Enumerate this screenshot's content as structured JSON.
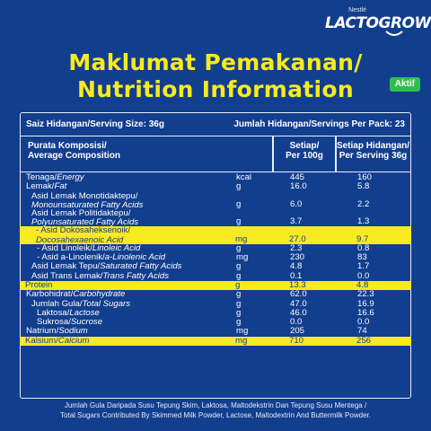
{
  "brand": {
    "maker": "Nestlé",
    "name": "LACTOGROW",
    "badge": "Aktif"
  },
  "title": {
    "line1": "Maklumat Pemakanan/",
    "line2": "Nutrition Information"
  },
  "serving": {
    "size": "Saiz Hidangan/Serving Size: 36g",
    "per_pack": "Jumlah Hidangan/Servings Per Pack: 23"
  },
  "columns": {
    "composition_1": "Purata Komposisi/",
    "composition_2": "Average Composition",
    "per100_1": "Setiap/",
    "per100_2": "Per 100g",
    "perserving_1": "Setiap Hidangan/",
    "perserving_2": "Per Serving 36g"
  },
  "rows": [
    {
      "ms": "Tenaga/",
      "en": "Energy",
      "unit": "kcal",
      "v100": "445",
      "vserv": "160"
    },
    {
      "ms": "Lemak/",
      "en": "Fat",
      "unit": "g",
      "v100": "16.0",
      "vserv": "5.8"
    },
    {
      "ms": "Asid Lemak Monotidaktepu/",
      "en": "Monounsaturated Fatty Acids",
      "unit": "g",
      "v100": "6.0",
      "vserv": "2.2"
    },
    {
      "ms": "Asid Lemak Politidaktepu/",
      "en": "Polyunsaturated Fatty Acids",
      "unit": "g",
      "v100": "3.7",
      "vserv": "1.3"
    },
    {
      "ms": "- Asid Dokosaheksenoik/",
      "en": "Docosahexaenoic Acid",
      "unit": "mg",
      "v100": "27.0",
      "vserv": "9.7"
    },
    {
      "ms": "- Asid Linoleik/",
      "en": "Linoleic Acid",
      "unit": "g",
      "v100": "2.3",
      "vserv": "0.8"
    },
    {
      "ms": "- Asid a-Linolenik/",
      "en": "a-Linolenic Acid",
      "unit": "mg",
      "v100": "230",
      "vserv": "83"
    },
    {
      "ms": "Asid Lemak Tepu/",
      "en": "Saturated Fatty Acids",
      "unit": "g",
      "v100": "4.8",
      "vserv": "1.7"
    },
    {
      "ms": "Asid Trans Lemak/",
      "en": "Trans Fatty Acids",
      "unit": "g",
      "v100": "0.1",
      "vserv": "0.0"
    },
    {
      "ms": "Protein",
      "en": "",
      "unit": "g",
      "v100": "13.3",
      "vserv": "4.8"
    },
    {
      "ms": "Karbohidrat/",
      "en": "Carbohydrate",
      "unit": "g",
      "v100": "62.0",
      "vserv": "22.3"
    },
    {
      "ms": "Jumlah Gula/",
      "en": "Total Sugars",
      "unit": "g",
      "v100": "47.0",
      "vserv": "16.9"
    },
    {
      "ms": "Laktosa/",
      "en": "Lactose",
      "unit": "g",
      "v100": "46.0",
      "vserv": "16.6"
    },
    {
      "ms": "Sukrosa/",
      "en": "Sucrose",
      "unit": "g",
      "v100": "0.0",
      "vserv": "0.0"
    },
    {
      "ms": "Natrium/",
      "en": "Sodium",
      "unit": "mg",
      "v100": "205",
      "vserv": "74"
    },
    {
      "ms": "Kalsium/",
      "en": "Calcium",
      "unit": "mg",
      "v100": "710",
      "vserv": "256"
    }
  ],
  "footnote": {
    "line1": "Jumlah Gula Daripada Susu Tepung Skim, Laktosa, Maltodekstrin Dan Tepung Susu Mentega /",
    "line2": "Total Sugars Contributed By Skimmed Milk Powder, Lactose, Maltodextrin And Buttermilk Powder."
  },
  "colors": {
    "background": "#123e8e",
    "accent": "#f7ea1f",
    "badge": "#2fbf4e"
  }
}
